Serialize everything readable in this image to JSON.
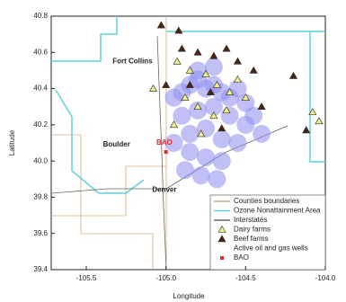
{
  "chart_data": {
    "type": "scatter",
    "x_label": "Longitude",
    "y_label": "Latitude",
    "xlim": [
      -105.72,
      -104.0
    ],
    "ylim": [
      39.4,
      40.8
    ],
    "xticks": [
      -105.5,
      {
        "value": -105,
        "label": "-105.0"
      },
      -104.5,
      {
        "value": -104,
        "label": "-104.0"
      }
    ],
    "yticks": [
      39.4,
      39.6,
      39.8,
      {
        "value": 40,
        "label": "40.0"
      },
      40.2,
      40.4,
      40.6,
      40.8
    ],
    "boundaries": [
      {
        "name": "Counties boundaries",
        "color": "#d9a77e"
      },
      {
        "name": "Ozone Nonattainment Area",
        "color": "#5fd3d9"
      },
      {
        "name": "Interstates",
        "color": "#666666"
      }
    ],
    "series": [
      {
        "name": "Dairy farms",
        "color": "#f3f08a",
        "marker": "triangle",
        "x": [
          -104.93,
          -104.85,
          -104.75,
          -104.68,
          -104.6,
          -104.55,
          -104.88,
          -104.8,
          -104.7,
          -104.95,
          -104.62,
          -104.5,
          -104.08,
          -104.04,
          -105.08,
          -104.78
        ],
        "y": [
          40.55,
          40.5,
          40.48,
          40.42,
          40.38,
          40.45,
          40.35,
          40.3,
          40.25,
          40.2,
          40.28,
          40.35,
          40.27,
          40.22,
          40.4,
          40.15
        ]
      },
      {
        "name": "Beef farms",
        "color": "#4a2412",
        "marker": "triangle",
        "x": [
          -105.03,
          -104.92,
          -104.9,
          -104.8,
          -104.7,
          -104.62,
          -104.55,
          -104.45,
          -104.2,
          -104.85,
          -104.72,
          -104.4,
          -104.12,
          -105.0,
          -104.65
        ],
        "y": [
          40.75,
          40.72,
          40.62,
          40.6,
          40.58,
          40.62,
          40.55,
          40.5,
          40.47,
          40.42,
          40.38,
          40.3,
          40.17,
          40.42,
          40.18
        ]
      },
      {
        "name": "Active oil and gas wells",
        "color": "#8c8cf0",
        "marker": "blob",
        "x": [
          -104.95,
          -104.9,
          -104.85,
          -104.8,
          -104.75,
          -104.7,
          -104.65,
          -104.6,
          -104.55,
          -104.5,
          -104.45,
          -104.9,
          -104.8,
          -104.7,
          -104.6,
          -104.5,
          -104.85,
          -104.75,
          -104.65,
          -104.55,
          -104.95,
          -104.85,
          -104.75,
          -104.65,
          -104.88,
          -104.78,
          -104.68,
          -104.8,
          -104.7,
          -104.4
        ],
        "y": [
          40.35,
          40.38,
          40.42,
          40.45,
          40.4,
          40.42,
          40.38,
          40.35,
          40.4,
          40.32,
          40.25,
          40.25,
          40.28,
          40.3,
          40.25,
          40.2,
          40.15,
          40.18,
          40.12,
          40.1,
          40.1,
          40.05,
          40.02,
          40.0,
          39.95,
          39.92,
          39.9,
          40.5,
          40.52,
          40.15
        ]
      },
      {
        "name": "BAO",
        "color": "#e0282a",
        "marker": "square",
        "x": [
          -105.0
        ],
        "y": [
          40.05
        ]
      }
    ],
    "annotations": [
      {
        "text": "Fort Collins",
        "x": -105.21,
        "y": 40.55,
        "color": "#222222"
      },
      {
        "text": "Boulder",
        "x": -105.31,
        "y": 40.09,
        "color": "#222222"
      },
      {
        "text": "BAO",
        "x": -105.01,
        "y": 40.1,
        "color": "#e0282a"
      },
      {
        "text": "Denver",
        "x": -105.01,
        "y": 39.84,
        "color": "#222222"
      }
    ]
  }
}
